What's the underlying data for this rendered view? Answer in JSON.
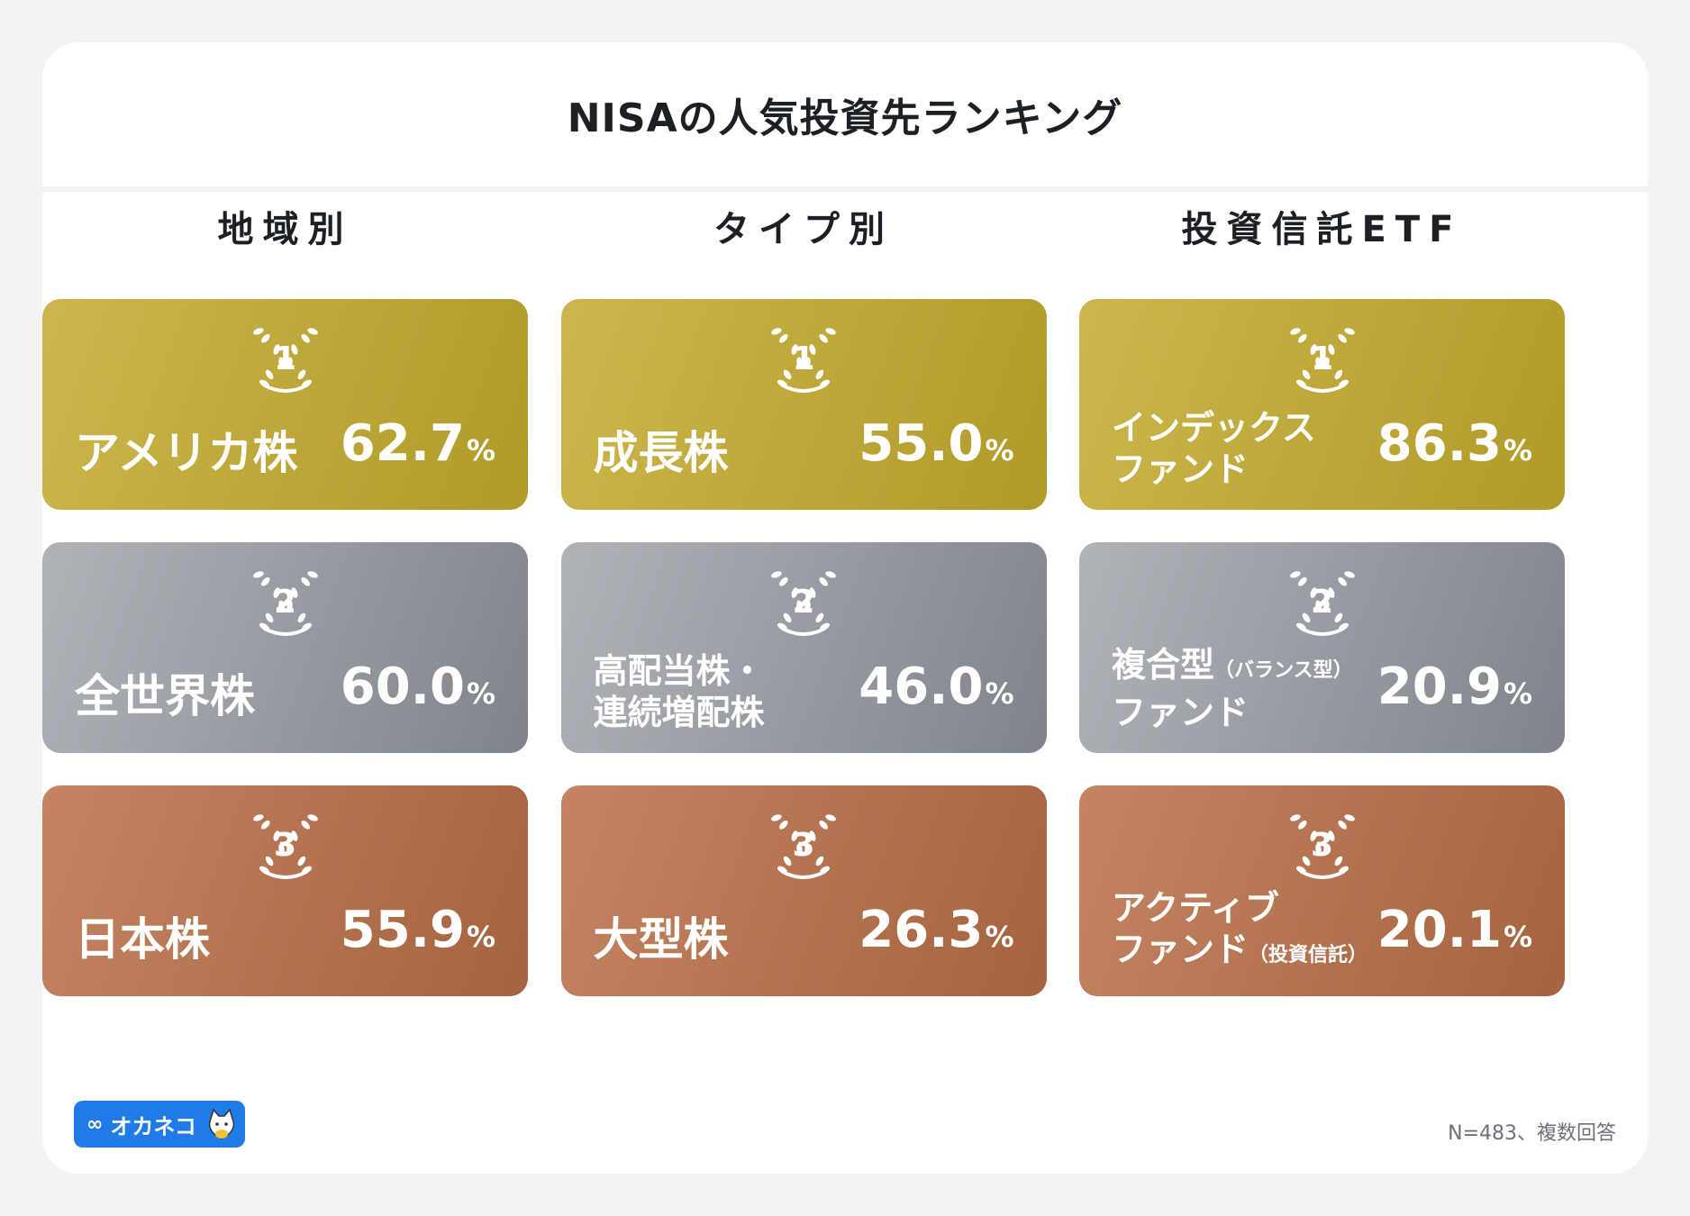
{
  "page": {
    "title": "NISAの人気投資先ランキング"
  },
  "columns": [
    {
      "title": "地域別",
      "items": [
        {
          "rank": "1",
          "tier": "gold",
          "label_lines": [
            "アメリカ株"
          ],
          "value": "62.7",
          "unit": "%"
        },
        {
          "rank": "2",
          "tier": "silver",
          "label_lines": [
            "全世界株"
          ],
          "value": "60.0",
          "unit": "%"
        },
        {
          "rank": "3",
          "tier": "bronze",
          "label_lines": [
            "日本株"
          ],
          "value": "55.9",
          "unit": "%"
        }
      ]
    },
    {
      "title": "タイプ別",
      "items": [
        {
          "rank": "1",
          "tier": "gold",
          "label_lines": [
            "成長株"
          ],
          "value": "55.0",
          "unit": "%"
        },
        {
          "rank": "2",
          "tier": "silver",
          "label_lines": [
            "高配当株・",
            "連続増配株"
          ],
          "value": "46.0",
          "unit": "%"
        },
        {
          "rank": "3",
          "tier": "bronze",
          "label_lines": [
            "大型株"
          ],
          "value": "26.3",
          "unit": "%"
        }
      ]
    },
    {
      "title": "投資信託ETF",
      "items": [
        {
          "rank": "1",
          "tier": "gold",
          "label_lines": [
            "インデックス",
            "ファンド"
          ],
          "value": "86.3",
          "unit": "%"
        },
        {
          "rank": "2",
          "tier": "silver",
          "label_lines": [
            "複合型",
            "ファンド"
          ],
          "label_note": "（バランス型）",
          "value": "20.9",
          "unit": "%"
        },
        {
          "rank": "3",
          "tier": "bronze",
          "label_lines": [
            "アクティブ",
            "ファンド"
          ],
          "label_note2": "（投資信託）",
          "value": "20.1",
          "unit": "%"
        }
      ]
    }
  ],
  "logo": {
    "text": "オカネコ",
    "icon": "infinity-logo-icon"
  },
  "footnote": "N=483、複数回答",
  "colors": {
    "gold": "#c0a83a",
    "silver": "#989ca2",
    "bronze": "#b57450"
  }
}
